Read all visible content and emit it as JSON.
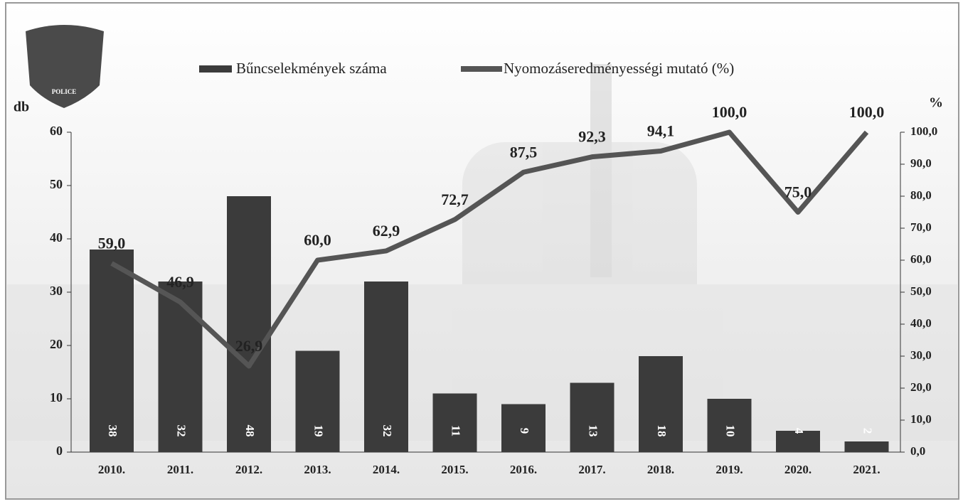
{
  "logo": {
    "text": "POLICE"
  },
  "chart_data": {
    "type": "bar-line",
    "legend": "top",
    "grid": false,
    "y_label": "db",
    "y2_label": "%",
    "categories": [
      "2010.",
      "2011.",
      "2012.",
      "2013.",
      "2014.",
      "2015.",
      "2016.",
      "2017.",
      "2018.",
      "2019.",
      "2020.",
      "2021."
    ],
    "series": [
      {
        "name": "Bűncselekmények száma",
        "type": "bar",
        "color": "#3b3b3b",
        "values": [
          38,
          32,
          48,
          19,
          32,
          11,
          9,
          13,
          18,
          10,
          4,
          2
        ]
      },
      {
        "name": "Nyomozáseredményességi mutató (%)",
        "type": "line",
        "axis": "y2",
        "color": "#555555",
        "values": [
          59.0,
          46.9,
          26.9,
          60.0,
          62.9,
          72.7,
          87.5,
          92.3,
          94.1,
          100.0,
          75.0,
          100.0
        ],
        "value_labels": [
          "59,0",
          "46,9",
          "26,9",
          "60,0",
          "62,9",
          "72,7",
          "87,5",
          "92,3",
          "94,1",
          "100,0",
          "75,0",
          "100,0"
        ]
      }
    ],
    "ylim": [
      0,
      60
    ],
    "yticks": [
      0,
      10,
      20,
      30,
      40,
      50,
      60
    ],
    "y2lim": [
      0,
      100
    ],
    "y2ticks": [
      {
        "value": 0,
        "label": "0,0"
      },
      {
        "value": 10,
        "label": "10,0"
      },
      {
        "value": 20,
        "label": "20,0"
      },
      {
        "value": 30,
        "label": "30,0"
      },
      {
        "value": 40,
        "label": "40,0"
      },
      {
        "value": 50,
        "label": "50,0"
      },
      {
        "value": 60,
        "label": "60,0"
      },
      {
        "value": 70,
        "label": "70,0"
      },
      {
        "value": 80,
        "label": "80,0"
      },
      {
        "value": 90,
        "label": "90,0"
      },
      {
        "value": 100,
        "label": "100,0"
      }
    ]
  }
}
